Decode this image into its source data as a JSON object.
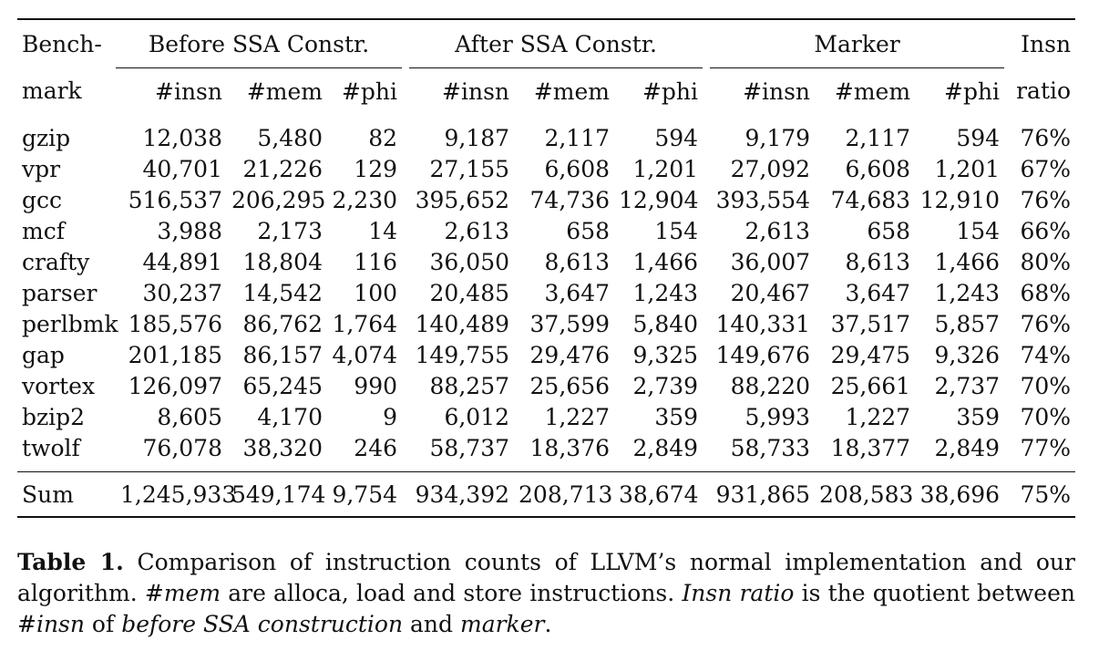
{
  "table": {
    "header": {
      "benchmark_top": "Bench-",
      "benchmark_bottom": "mark",
      "groups": [
        "Before SSA Constr.",
        "After SSA Constr.",
        "Marker"
      ],
      "ratio_top": "Insn",
      "ratio_bottom": "ratio",
      "subcols": [
        "#insn",
        "#mem",
        "#phi"
      ]
    },
    "rows": [
      [
        "gzip",
        "12,038",
        "5,480",
        "82",
        "9,187",
        "2,117",
        "594",
        "9,179",
        "2,117",
        "594",
        "76%"
      ],
      [
        "vpr",
        "40,701",
        "21,226",
        "129",
        "27,155",
        "6,608",
        "1,201",
        "27,092",
        "6,608",
        "1,201",
        "67%"
      ],
      [
        "gcc",
        "516,537",
        "206,295",
        "2,230",
        "395,652",
        "74,736",
        "12,904",
        "393,554",
        "74,683",
        "12,910",
        "76%"
      ],
      [
        "mcf",
        "3,988",
        "2,173",
        "14",
        "2,613",
        "658",
        "154",
        "2,613",
        "658",
        "154",
        "66%"
      ],
      [
        "crafty",
        "44,891",
        "18,804",
        "116",
        "36,050",
        "8,613",
        "1,466",
        "36,007",
        "8,613",
        "1,466",
        "80%"
      ],
      [
        "parser",
        "30,237",
        "14,542",
        "100",
        "20,485",
        "3,647",
        "1,243",
        "20,467",
        "3,647",
        "1,243",
        "68%"
      ],
      [
        "perlbmk",
        "185,576",
        "86,762",
        "1,764",
        "140,489",
        "37,599",
        "5,840",
        "140,331",
        "37,517",
        "5,857",
        "76%"
      ],
      [
        "gap",
        "201,185",
        "86,157",
        "4,074",
        "149,755",
        "29,476",
        "9,325",
        "149,676",
        "29,475",
        "9,326",
        "74%"
      ],
      [
        "vortex",
        "126,097",
        "65,245",
        "990",
        "88,257",
        "25,656",
        "2,739",
        "88,220",
        "25,661",
        "2,737",
        "70%"
      ],
      [
        "bzip2",
        "8,605",
        "4,170",
        "9",
        "6,012",
        "1,227",
        "359",
        "5,993",
        "1,227",
        "359",
        "70%"
      ],
      [
        "twolf",
        "76,078",
        "38,320",
        "246",
        "58,737",
        "18,376",
        "2,849",
        "58,733",
        "18,377",
        "2,849",
        "77%"
      ]
    ],
    "sum": [
      "Sum",
      "1,245,933",
      "549,174",
      "9,754",
      "934,392",
      "208,713",
      "38,674",
      "931,865",
      "208,583",
      "38,696",
      "75%"
    ]
  },
  "caption": {
    "label": "Table 1.",
    "t1": " Comparison of instruction counts of LLVM’s normal implementation and our algorithm. ",
    "i1": "#mem",
    "t2": " are alloca, load and store instructions. ",
    "i2": "Insn ratio",
    "t3": " is the quotient between ",
    "i3": "#insn",
    "t4": " of ",
    "i4": "before SSA construction",
    "t5": " and ",
    "i5": "marker",
    "t6": "."
  }
}
